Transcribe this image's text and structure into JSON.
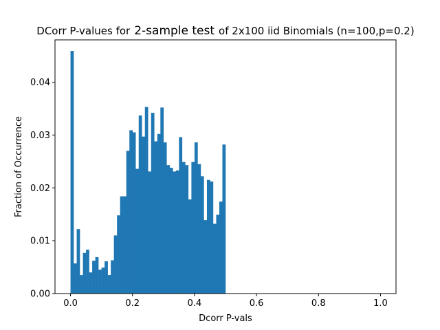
{
  "chart_data": {
    "type": "bar",
    "title": {
      "prefix": "DCorr P-values for",
      "emphasis": "2-sample test",
      "suffix": "of 2x100 iid Binomials (n=100,p=0.2)"
    },
    "xlabel": "Dcorr P-vals",
    "ylabel": "Fraction of Occurrence",
    "xlim": [
      -0.05,
      1.05
    ],
    "ylim": [
      0,
      0.048
    ],
    "xticks": [
      0.0,
      0.2,
      0.4,
      0.6,
      0.8,
      1.0
    ],
    "xtick_labels": [
      "0.0",
      "0.2",
      "0.4",
      "0.6",
      "0.8",
      "1.0"
    ],
    "yticks": [
      0.0,
      0.01,
      0.02,
      0.03,
      0.04
    ],
    "ytick_labels": [
      "0.00",
      "0.01",
      "0.02",
      "0.03",
      "0.04"
    ],
    "bin_width": 0.01,
    "bins_start": [
      0.0,
      0.01,
      0.02,
      0.03,
      0.04,
      0.05,
      0.06,
      0.07,
      0.08,
      0.09,
      0.1,
      0.11,
      0.12,
      0.13,
      0.14,
      0.15,
      0.16,
      0.17,
      0.18,
      0.19,
      0.2,
      0.21,
      0.22,
      0.23,
      0.24,
      0.25,
      0.26,
      0.27,
      0.28,
      0.29,
      0.3,
      0.31,
      0.32,
      0.33,
      0.34,
      0.35,
      0.36,
      0.37,
      0.38,
      0.39,
      0.4,
      0.41,
      0.42,
      0.43,
      0.44,
      0.45,
      0.46,
      0.47,
      0.48,
      0.49
    ],
    "values": [
      0.0459,
      0.0057,
      0.0122,
      0.0035,
      0.0077,
      0.0083,
      0.004,
      0.0062,
      0.0069,
      0.0045,
      0.0049,
      0.0061,
      0.0035,
      0.0063,
      0.011,
      0.0148,
      0.0184,
      0.0184,
      0.027,
      0.0309,
      0.0305,
      0.0236,
      0.0337,
      0.0297,
      0.0353,
      0.0231,
      0.0342,
      0.0288,
      0.0302,
      0.0352,
      0.0286,
      0.0243,
      0.0238,
      0.0231,
      0.0233,
      0.0296,
      0.0249,
      0.0243,
      0.0178,
      0.0249,
      0.0286,
      0.0245,
      0.0222,
      0.0139,
      0.0215,
      0.0212,
      0.0132,
      0.0149,
      0.0174,
      0.0282
    ],
    "bar_color": "#1f77b4",
    "grid": false
  }
}
